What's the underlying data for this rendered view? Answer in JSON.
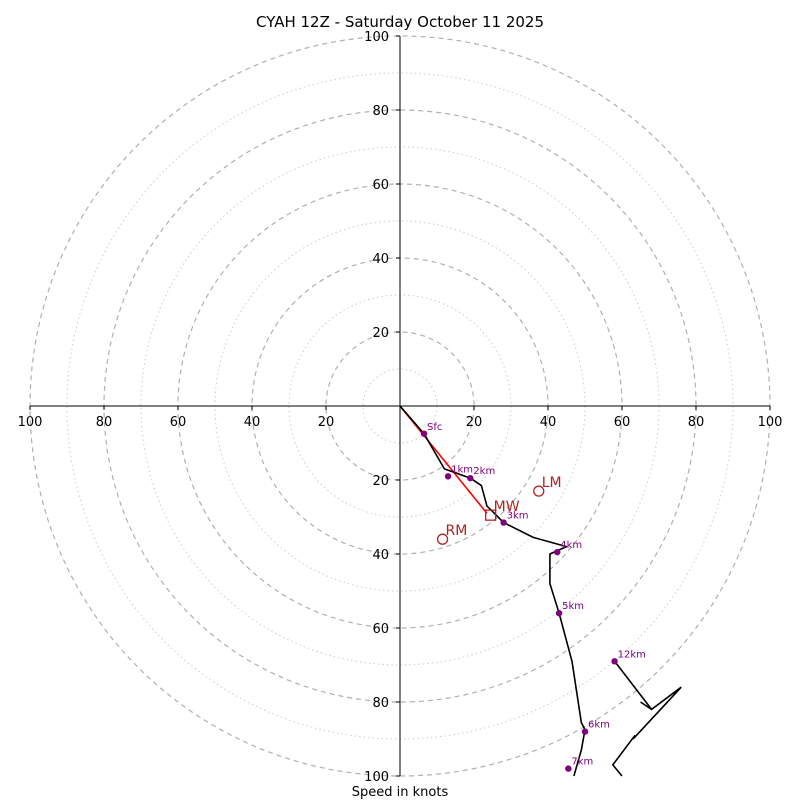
{
  "chart_data": {
    "type": "hodograph",
    "title": "CYAH 12Z - Saturday October 11 2025",
    "xlabel": "Speed in knots",
    "range_kt": 100,
    "ring_step_kt": 20,
    "minor_ring_step_kt": 10,
    "ticks": {
      "x_left": [
        "100",
        "80",
        "60",
        "40",
        "20"
      ],
      "x_right": [
        "20",
        "40",
        "60",
        "80",
        "100"
      ],
      "y_up": [
        "20",
        "40",
        "60",
        "80",
        "100"
      ],
      "y_down": [
        "20",
        "40",
        "60",
        "80",
        "100"
      ]
    },
    "profile": [
      {
        "u": 0,
        "v": 0
      },
      {
        "u": 6.5,
        "v": -7.5
      },
      {
        "u": 12,
        "v": -17
      },
      {
        "u": 19,
        "v": -19.5
      },
      {
        "u": 22,
        "v": -21.5
      },
      {
        "u": 23.5,
        "v": -27
      },
      {
        "u": 28,
        "v": -31.5
      },
      {
        "u": 36,
        "v": -35.5
      },
      {
        "u": 45,
        "v": -38
      },
      {
        "u": 40.5,
        "v": -40
      },
      {
        "u": 40.5,
        "v": -48
      },
      {
        "u": 43,
        "v": -56
      },
      {
        "u": 46.5,
        "v": -69
      },
      {
        "u": 49,
        "v": -85.5
      },
      {
        "u": 50,
        "v": -87.5
      },
      {
        "u": 49,
        "v": -93
      },
      {
        "u": 47,
        "v": -100
      }
    ],
    "profile_color": "#000000",
    "mean_wind_line": {
      "from": {
        "u": 0,
        "v": 0
      },
      "to": {
        "u": 23.5,
        "v": -29
      },
      "color": "#ff0000"
    },
    "height_markers": [
      {
        "label": "Sfc",
        "u": 6.5,
        "v": -7.5
      },
      {
        "label": "1km",
        "u": 13,
        "v": -19
      },
      {
        "label": "2km",
        "u": 19,
        "v": -19.5
      },
      {
        "label": "3km",
        "u": 28,
        "v": -31.5
      },
      {
        "label": "4km",
        "u": 42.5,
        "v": -39.5
      },
      {
        "label": "5km",
        "u": 43,
        "v": -56
      },
      {
        "label": "6km",
        "u": 50,
        "v": -88
      },
      {
        "label": "7km",
        "u": 45.5,
        "v": -98
      },
      {
        "label": "12km",
        "u": 58,
        "v": -69
      }
    ],
    "marker_color": "#800080",
    "motions": [
      {
        "label": "RM",
        "u": 11.5,
        "v": -36,
        "symbol": "circle"
      },
      {
        "label": "LM",
        "u": 37.5,
        "v": -23,
        "symbol": "circle"
      },
      {
        "label": "MW",
        "u": 24.5,
        "v": -29.5,
        "symbol": "square"
      }
    ],
    "motion_color": "#b22222",
    "barb": {
      "points": [
        {
          "u": 58,
          "v": -69
        },
        {
          "u": 68,
          "v": -82
        },
        {
          "u": 76,
          "v": -76
        },
        {
          "u": 63,
          "v": -90
        },
        {
          "u": 63.5,
          "v": -89
        },
        {
          "u": 57.5,
          "v": -97
        },
        {
          "u": 60,
          "v": -100
        }
      ],
      "tick": {
        "from": {
          "u": 68,
          "v": -82
        },
        "to": {
          "u": 65,
          "v": -80
        }
      }
    }
  }
}
